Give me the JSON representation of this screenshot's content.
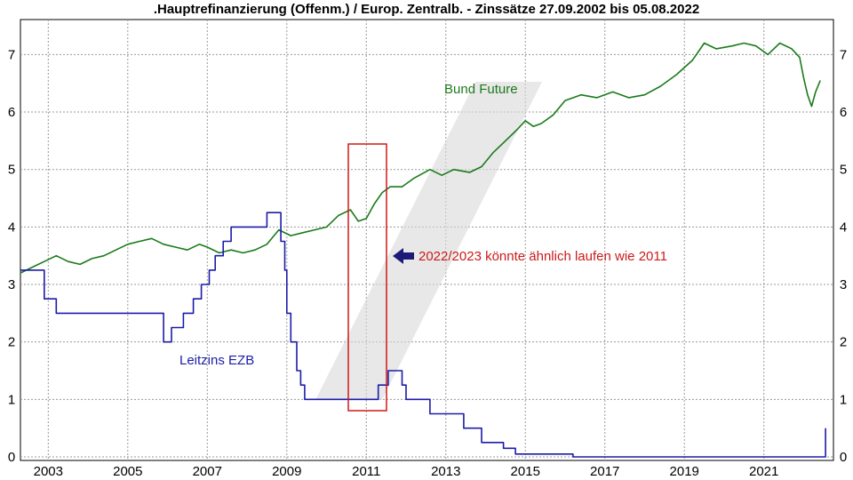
{
  "chart_data": {
    "type": "line",
    "title": ".Hauptrefinanzierung (Offenm.) / Europ. Zentralb. - Zinssätze 27.09.2002 bis 05.08.2022",
    "xlabel": "",
    "ylabel": "",
    "xlim": [
      2002.3,
      2022.75
    ],
    "ylim": [
      0,
      7.3
    ],
    "x_ticks": [
      "2003",
      "2005",
      "2007",
      "2009",
      "2011",
      "2013",
      "2015",
      "2017",
      "2019",
      "2021"
    ],
    "x_tick_values": [
      2003,
      2005,
      2007,
      2009,
      2011,
      2013,
      2015,
      2017,
      2019,
      2021
    ],
    "y_ticks": [
      "0",
      "1",
      "2",
      "3",
      "4",
      "5",
      "6",
      "7"
    ],
    "y_tick_values": [
      0,
      1,
      2,
      3,
      4,
      5,
      6,
      7
    ],
    "grid": true,
    "series": [
      {
        "name": "Bund Future",
        "color": "#1a7a1a",
        "points": [
          [
            2002.3,
            3.2
          ],
          [
            2002.6,
            3.3
          ],
          [
            2002.9,
            3.4
          ],
          [
            2003.2,
            3.5
          ],
          [
            2003.5,
            3.4
          ],
          [
            2003.8,
            3.35
          ],
          [
            2004.1,
            3.45
          ],
          [
            2004.4,
            3.5
          ],
          [
            2004.7,
            3.6
          ],
          [
            2005.0,
            3.7
          ],
          [
            2005.3,
            3.75
          ],
          [
            2005.6,
            3.8
          ],
          [
            2005.9,
            3.7
          ],
          [
            2006.2,
            3.65
          ],
          [
            2006.5,
            3.6
          ],
          [
            2006.8,
            3.7
          ],
          [
            2007.0,
            3.65
          ],
          [
            2007.3,
            3.55
          ],
          [
            2007.6,
            3.6
          ],
          [
            2007.9,
            3.55
          ],
          [
            2008.2,
            3.6
          ],
          [
            2008.5,
            3.7
          ],
          [
            2008.8,
            3.95
          ],
          [
            2009.1,
            3.85
          ],
          [
            2009.4,
            3.9
          ],
          [
            2009.7,
            3.95
          ],
          [
            2010.0,
            4.0
          ],
          [
            2010.3,
            4.2
          ],
          [
            2010.6,
            4.3
          ],
          [
            2010.8,
            4.1
          ],
          [
            2011.0,
            4.15
          ],
          [
            2011.2,
            4.4
          ],
          [
            2011.4,
            4.6
          ],
          [
            2011.6,
            4.7
          ],
          [
            2011.9,
            4.7
          ],
          [
            2012.2,
            4.85
          ],
          [
            2012.6,
            5.0
          ],
          [
            2012.9,
            4.9
          ],
          [
            2013.2,
            5.0
          ],
          [
            2013.6,
            4.95
          ],
          [
            2013.9,
            5.05
          ],
          [
            2014.2,
            5.3
          ],
          [
            2014.5,
            5.5
          ],
          [
            2014.8,
            5.7
          ],
          [
            2015.0,
            5.85
          ],
          [
            2015.2,
            5.75
          ],
          [
            2015.4,
            5.8
          ],
          [
            2015.7,
            5.95
          ],
          [
            2016.0,
            6.2
          ],
          [
            2016.4,
            6.3
          ],
          [
            2016.8,
            6.25
          ],
          [
            2017.2,
            6.35
          ],
          [
            2017.6,
            6.25
          ],
          [
            2018.0,
            6.3
          ],
          [
            2018.4,
            6.45
          ],
          [
            2018.8,
            6.65
          ],
          [
            2019.2,
            6.9
          ],
          [
            2019.5,
            7.2
          ],
          [
            2019.8,
            7.1
          ],
          [
            2020.2,
            7.15
          ],
          [
            2020.5,
            7.2
          ],
          [
            2020.8,
            7.15
          ],
          [
            2021.1,
            7.0
          ],
          [
            2021.4,
            7.2
          ],
          [
            2021.7,
            7.1
          ],
          [
            2021.9,
            6.95
          ],
          [
            2022.0,
            6.6
          ],
          [
            2022.1,
            6.3
          ],
          [
            2022.2,
            6.1
          ],
          [
            2022.3,
            6.35
          ],
          [
            2022.42,
            6.55
          ]
        ]
      },
      {
        "name": "Leitzins EZB",
        "color": "#1c1ca8",
        "points": [
          [
            2002.3,
            3.25
          ],
          [
            2002.9,
            3.25
          ],
          [
            2002.9,
            2.75
          ],
          [
            2003.2,
            2.75
          ],
          [
            2003.2,
            2.5
          ],
          [
            2005.9,
            2.5
          ],
          [
            2005.9,
            2.0
          ],
          [
            2006.1,
            2.0
          ],
          [
            2006.1,
            2.25
          ],
          [
            2006.4,
            2.25
          ],
          [
            2006.4,
            2.5
          ],
          [
            2006.65,
            2.5
          ],
          [
            2006.65,
            2.75
          ],
          [
            2006.85,
            2.75
          ],
          [
            2006.85,
            3.0
          ],
          [
            2007.05,
            3.0
          ],
          [
            2007.05,
            3.25
          ],
          [
            2007.2,
            3.25
          ],
          [
            2007.2,
            3.5
          ],
          [
            2007.4,
            3.5
          ],
          [
            2007.4,
            3.75
          ],
          [
            2007.6,
            3.75
          ],
          [
            2007.6,
            4.0
          ],
          [
            2008.5,
            4.0
          ],
          [
            2008.5,
            4.25
          ],
          [
            2008.85,
            4.25
          ],
          [
            2008.85,
            3.75
          ],
          [
            2008.95,
            3.75
          ],
          [
            2008.95,
            3.25
          ],
          [
            2009.0,
            3.25
          ],
          [
            2009.0,
            2.5
          ],
          [
            2009.1,
            2.5
          ],
          [
            2009.1,
            2.0
          ],
          [
            2009.25,
            2.0
          ],
          [
            2009.25,
            1.5
          ],
          [
            2009.35,
            1.5
          ],
          [
            2009.35,
            1.25
          ],
          [
            2009.45,
            1.25
          ],
          [
            2009.45,
            1.0
          ],
          [
            2011.3,
            1.0
          ],
          [
            2011.3,
            1.25
          ],
          [
            2011.55,
            1.25
          ],
          [
            2011.55,
            1.5
          ],
          [
            2011.9,
            1.5
          ],
          [
            2011.9,
            1.25
          ],
          [
            2012.0,
            1.25
          ],
          [
            2012.0,
            1.0
          ],
          [
            2012.6,
            1.0
          ],
          [
            2012.6,
            0.75
          ],
          [
            2013.45,
            0.75
          ],
          [
            2013.45,
            0.5
          ],
          [
            2013.9,
            0.5
          ],
          [
            2013.9,
            0.25
          ],
          [
            2014.45,
            0.25
          ],
          [
            2014.45,
            0.15
          ],
          [
            2014.75,
            0.15
          ],
          [
            2014.75,
            0.05
          ],
          [
            2016.2,
            0.05
          ],
          [
            2016.2,
            0.0
          ],
          [
            2022.55,
            0.0
          ],
          [
            2022.55,
            0.5
          ]
        ]
      }
    ],
    "annotations": {
      "bund_label": "Bund Future",
      "ezb_label": "Leitzins EZB",
      "arrow_text": "2022/2023 könnte ähnlich laufen wie 2011",
      "bund_color": "#1a7a1a",
      "ezb_color": "#1c1ca8",
      "arrow_color": "#cc1a1a",
      "box_color": "#d01818"
    }
  }
}
